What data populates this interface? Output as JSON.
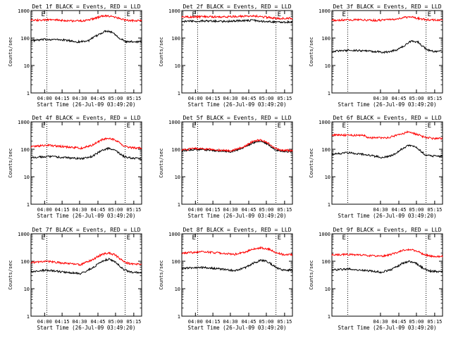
{
  "figure": {
    "shared": {
      "type": "line",
      "yscale": "log",
      "ylim": [
        1,
        1000
      ],
      "ylabel": "Counts/sec",
      "xlabel": "Start Time (26-Jul-09 03:49:20)",
      "ytick_labels": [
        "1",
        "10",
        "100",
        "1000"
      ],
      "series_colors": {
        "events": "#000000",
        "lld": "#ff0000"
      },
      "marker_label": "E"
    },
    "chart_data": [
      {
        "title": "Det 1f BLACK = Events, RED = LLD",
        "xtick_labels": [
          "04:00",
          "04:15",
          "04:30",
          "04:45",
          "05:00",
          "05:15"
        ],
        "series": [
          {
            "color": "#000000",
            "points": [
              [
                0,
                80
              ],
              [
                0.15,
                90
              ],
              [
                0.3,
                85
              ],
              [
                0.42,
                72
              ],
              [
                0.52,
                80
              ],
              [
                0.62,
                140
              ],
              [
                0.68,
                185
              ],
              [
                0.74,
                160
              ],
              [
                0.8,
                100
              ],
              [
                0.86,
                72
              ],
              [
                0.92,
                74
              ],
              [
                1,
                74
              ]
            ]
          },
          {
            "color": "#ff0000",
            "points": [
              [
                0,
                440
              ],
              [
                0.2,
                460
              ],
              [
                0.35,
                420
              ],
              [
                0.48,
                420
              ],
              [
                0.56,
                500
              ],
              [
                0.66,
                650
              ],
              [
                0.74,
                600
              ],
              [
                0.82,
                480
              ],
              [
                0.88,
                430
              ],
              [
                1,
                430
              ]
            ]
          }
        ]
      },
      {
        "title": "Det 2f BLACK = Events, RED = LLD",
        "xtick_labels": [
          "04:00",
          "04:15",
          "04:30",
          "04:45",
          "05:00",
          "05:15"
        ],
        "series": [
          {
            "color": "#000000",
            "points": [
              [
                0,
                400
              ],
              [
                0.2,
                420
              ],
              [
                0.4,
                400
              ],
              [
                0.55,
                430
              ],
              [
                0.65,
                440
              ],
              [
                0.72,
                410
              ],
              [
                0.8,
                400
              ],
              [
                0.86,
                380
              ],
              [
                1,
                380
              ]
            ]
          },
          {
            "color": "#ff0000",
            "points": [
              [
                0,
                580
              ],
              [
                0.2,
                600
              ],
              [
                0.4,
                590
              ],
              [
                0.55,
                620
              ],
              [
                0.65,
                640
              ],
              [
                0.72,
                600
              ],
              [
                0.78,
                560
              ],
              [
                0.86,
                520
              ],
              [
                1,
                520
              ]
            ]
          }
        ]
      },
      {
        "title": "Det 3f BLACK = Events, RED = LLD",
        "xtick_labels": [
          "04:30",
          "04:45",
          "05:00",
          "05:15"
        ],
        "series": [
          {
            "color": "#000000",
            "points": [
              [
                0,
                33
              ],
              [
                0.2,
                36
              ],
              [
                0.35,
                33
              ],
              [
                0.48,
                30
              ],
              [
                0.58,
                36
              ],
              [
                0.66,
                55
              ],
              [
                0.72,
                80
              ],
              [
                0.78,
                70
              ],
              [
                0.85,
                40
              ],
              [
                0.9,
                33
              ],
              [
                1,
                33
              ]
            ]
          },
          {
            "color": "#ff0000",
            "points": [
              [
                0,
                450
              ],
              [
                0.2,
                460
              ],
              [
                0.4,
                440
              ],
              [
                0.55,
                470
              ],
              [
                0.65,
                560
              ],
              [
                0.72,
                580
              ],
              [
                0.8,
                500
              ],
              [
                0.88,
                460
              ],
              [
                1,
                450
              ]
            ]
          }
        ]
      },
      {
        "title": "Det 4f BLACK = Events, RED = LLD",
        "xtick_labels": [
          "04:00",
          "04:15",
          "04:30",
          "04:45",
          "05:00",
          "05:15"
        ],
        "series": [
          {
            "color": "#000000",
            "points": [
              [
                0,
                50
              ],
              [
                0.15,
                55
              ],
              [
                0.3,
                50
              ],
              [
                0.45,
                45
              ],
              [
                0.55,
                55
              ],
              [
                0.64,
                90
              ],
              [
                0.7,
                110
              ],
              [
                0.76,
                90
              ],
              [
                0.84,
                55
              ],
              [
                0.9,
                48
              ],
              [
                1,
                45
              ]
            ]
          },
          {
            "color": "#ff0000",
            "points": [
              [
                0,
                125
              ],
              [
                0.15,
                140
              ],
              [
                0.3,
                125
              ],
              [
                0.45,
                110
              ],
              [
                0.55,
                140
              ],
              [
                0.64,
                220
              ],
              [
                0.7,
                260
              ],
              [
                0.76,
                220
              ],
              [
                0.84,
                130
              ],
              [
                0.9,
                115
              ],
              [
                1,
                110
              ]
            ]
          }
        ]
      },
      {
        "title": "Det 5f BLACK = Events, RED = LLD",
        "xtick_labels": [
          "04:00",
          "04:15",
          "04:30",
          "04:45",
          "05:00",
          "05:15"
        ],
        "series": [
          {
            "color": "#000000",
            "points": [
              [
                0,
                90
              ],
              [
                0.15,
                100
              ],
              [
                0.3,
                90
              ],
              [
                0.45,
                82
              ],
              [
                0.55,
                110
              ],
              [
                0.64,
                170
              ],
              [
                0.7,
                195
              ],
              [
                0.76,
                170
              ],
              [
                0.84,
                100
              ],
              [
                0.9,
                85
              ],
              [
                1,
                82
              ]
            ]
          },
          {
            "color": "#ff0000",
            "points": [
              [
                0,
                95
              ],
              [
                0.15,
                110
              ],
              [
                0.3,
                95
              ],
              [
                0.45,
                88
              ],
              [
                0.55,
                120
              ],
              [
                0.64,
                190
              ],
              [
                0.7,
                220
              ],
              [
                0.76,
                190
              ],
              [
                0.84,
                110
              ],
              [
                0.9,
                92
              ],
              [
                1,
                90
              ]
            ]
          }
        ]
      },
      {
        "title": "Det 6f BLACK = Events, RED = LLD",
        "xtick_labels": [
          "04:30",
          "04:45",
          "05:00",
          "05:15"
        ],
        "series": [
          {
            "color": "#000000",
            "points": [
              [
                0,
                65
              ],
              [
                0.15,
                75
              ],
              [
                0.3,
                65
              ],
              [
                0.45,
                50
              ],
              [
                0.55,
                60
              ],
              [
                0.64,
                110
              ],
              [
                0.7,
                140
              ],
              [
                0.76,
                120
              ],
              [
                0.84,
                65
              ],
              [
                0.9,
                57
              ],
              [
                1,
                55
              ]
            ]
          },
          {
            "color": "#ff0000",
            "points": [
              [
                0,
                330
              ],
              [
                0.3,
                320
              ],
              [
                0.32,
                260
              ],
              [
                0.5,
                260
              ],
              [
                0.6,
                330
              ],
              [
                0.68,
                420
              ],
              [
                0.74,
                380
              ],
              [
                0.82,
                290
              ],
              [
                0.9,
                250
              ],
              [
                1,
                250
              ]
            ]
          }
        ]
      },
      {
        "title": "Det 7f BLACK = Events, RED = LLD",
        "xtick_labels": [
          "04:00",
          "04:15",
          "04:30",
          "04:45",
          "05:00",
          "05:15"
        ],
        "series": [
          {
            "color": "#000000",
            "points": [
              [
                0,
                42
              ],
              [
                0.15,
                48
              ],
              [
                0.3,
                40
              ],
              [
                0.45,
                35
              ],
              [
                0.55,
                55
              ],
              [
                0.64,
                100
              ],
              [
                0.7,
                120
              ],
              [
                0.76,
                95
              ],
              [
                0.84,
                50
              ],
              [
                0.9,
                40
              ],
              [
                1,
                38
              ]
            ]
          },
          {
            "color": "#ff0000",
            "points": [
              [
                0,
                90
              ],
              [
                0.15,
                100
              ],
              [
                0.3,
                85
              ],
              [
                0.45,
                75
              ],
              [
                0.55,
                110
              ],
              [
                0.64,
                180
              ],
              [
                0.7,
                200
              ],
              [
                0.76,
                170
              ],
              [
                0.84,
                95
              ],
              [
                0.9,
                80
              ],
              [
                1,
                78
              ]
            ]
          }
        ]
      },
      {
        "title": "Det 8f BLACK = Events, RED = LLD",
        "xtick_labels": [
          "04:00",
          "04:15",
          "04:30",
          "04:45",
          "05:00",
          "05:15"
        ],
        "series": [
          {
            "color": "#000000",
            "points": [
              [
                0,
                55
              ],
              [
                0.2,
                60
              ],
              [
                0.35,
                52
              ],
              [
                0.48,
                45
              ],
              [
                0.58,
                60
              ],
              [
                0.66,
                90
              ],
              [
                0.72,
                110
              ],
              [
                0.78,
                95
              ],
              [
                0.86,
                55
              ],
              [
                0.92,
                48
              ],
              [
                1,
                48
              ]
            ]
          },
          {
            "color": "#ff0000",
            "points": [
              [
                0,
                200
              ],
              [
                0.2,
                220
              ],
              [
                0.35,
                200
              ],
              [
                0.48,
                180
              ],
              [
                0.58,
                220
              ],
              [
                0.66,
                290
              ],
              [
                0.72,
                310
              ],
              [
                0.78,
                280
              ],
              [
                0.86,
                200
              ],
              [
                0.92,
                175
              ],
              [
                1,
                170
              ]
            ]
          }
        ]
      },
      {
        "title": "Det 9f BLACK = Events, RED = LLD",
        "xtick_labels": [
          "04:30",
          "04:45",
          "05:00",
          "05:15"
        ],
        "series": [
          {
            "color": "#000000",
            "points": [
              [
                0,
                48
              ],
              [
                0.15,
                52
              ],
              [
                0.3,
                46
              ],
              [
                0.45,
                40
              ],
              [
                0.55,
                52
              ],
              [
                0.64,
                85
              ],
              [
                0.7,
                100
              ],
              [
                0.76,
                85
              ],
              [
                0.84,
                50
              ],
              [
                0.9,
                43
              ],
              [
                1,
                42
              ]
            ]
          },
          {
            "color": "#ff0000",
            "points": [
              [
                0,
                170
              ],
              [
                0.15,
                180
              ],
              [
                0.3,
                165
              ],
              [
                0.45,
                150
              ],
              [
                0.55,
                185
              ],
              [
                0.64,
                250
              ],
              [
                0.7,
                270
              ],
              [
                0.76,
                240
              ],
              [
                0.84,
                170
              ],
              [
                0.9,
                150
              ],
              [
                1,
                150
              ]
            ]
          }
        ]
      }
    ]
  }
}
